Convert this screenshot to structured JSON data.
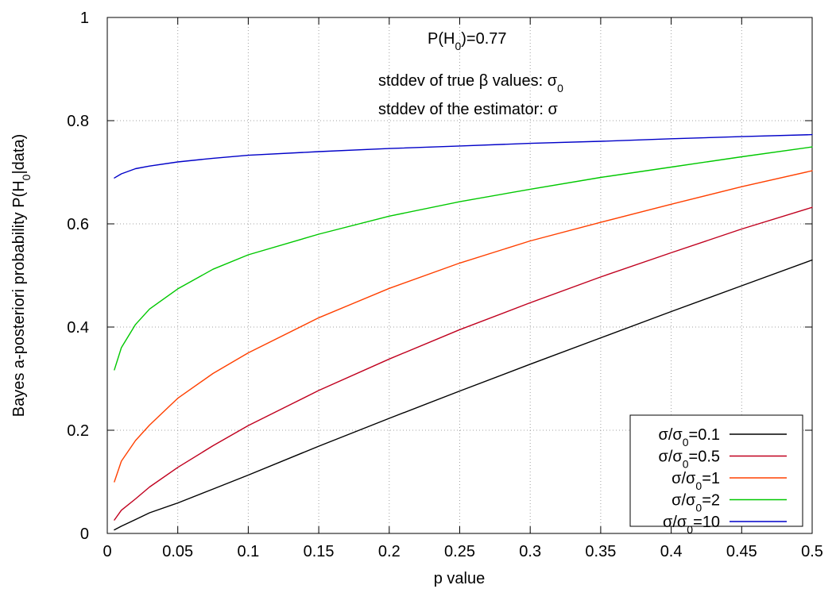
{
  "chart_data": {
    "type": "line",
    "title": "",
    "xlabel": "p value",
    "ylabel": "Bayes a-posteriori probability P(H",
    "ylabel_sub": "0",
    "ylabel_tail": "|data)",
    "xlim": [
      0,
      0.5
    ],
    "ylim": [
      0,
      1
    ],
    "xticks": [
      0,
      0.05,
      0.1,
      0.15,
      0.2,
      0.25,
      0.3,
      0.35,
      0.4,
      0.45,
      0.5
    ],
    "xtick_labels": [
      "0",
      "0.05",
      "0.1",
      "0.15",
      "0.2",
      "0.25",
      "0.3",
      "0.35",
      "0.4",
      "0.45",
      "0.5"
    ],
    "yticks": [
      0,
      0.2,
      0.4,
      0.6,
      0.8,
      1
    ],
    "ytick_labels": [
      "0",
      "0.2",
      "0.4",
      "0.6",
      "0.8",
      "1"
    ],
    "grid": true,
    "legend_position": "bottom-right",
    "annotations": {
      "prior_main": "P(H",
      "prior_sub": "0",
      "prior_tail": ")=0.77",
      "line1_main": "stddev of true β values: σ",
      "line1_sub": "0",
      "line2_main": "stddev of the estimator: σ"
    },
    "x": [
      0.005,
      0.01,
      0.02,
      0.03,
      0.05,
      0.075,
      0.1,
      0.15,
      0.2,
      0.25,
      0.3,
      0.35,
      0.4,
      0.45,
      0.5
    ],
    "series": [
      {
        "legend_main": "σ/σ",
        "legend_sub": "0",
        "legend_tail": "=0.1",
        "color": "#000000",
        "values": [
          0.007,
          0.014,
          0.027,
          0.04,
          0.059,
          0.086,
          0.113,
          0.169,
          0.223,
          0.276,
          0.328,
          0.379,
          0.43,
          0.48,
          0.53
        ]
      },
      {
        "legend_main": "σ/σ",
        "legend_sub": "0",
        "legend_tail": "=0.5",
        "color": "#c0001e",
        "values": [
          0.026,
          0.045,
          0.067,
          0.09,
          0.128,
          0.17,
          0.209,
          0.277,
          0.338,
          0.395,
          0.447,
          0.497,
          0.544,
          0.59,
          0.632
        ]
      },
      {
        "legend_main": "σ/σ",
        "legend_sub": "0",
        "legend_tail": "=1",
        "color": "#ff4000",
        "values": [
          0.1,
          0.14,
          0.18,
          0.21,
          0.262,
          0.31,
          0.35,
          0.418,
          0.475,
          0.524,
          0.567,
          0.603,
          0.638,
          0.672,
          0.703
        ]
      },
      {
        "legend_main": "σ/σ",
        "legend_sub": "0",
        "legend_tail": "=2",
        "color": "#00c800",
        "values": [
          0.317,
          0.36,
          0.405,
          0.435,
          0.474,
          0.512,
          0.54,
          0.58,
          0.615,
          0.643,
          0.667,
          0.69,
          0.71,
          0.73,
          0.749
        ]
      },
      {
        "legend_main": "σ/σ",
        "legend_sub": "0",
        "legend_tail": "=10",
        "color": "#0000c8",
        "values": [
          0.689,
          0.697,
          0.707,
          0.712,
          0.72,
          0.727,
          0.733,
          0.74,
          0.746,
          0.751,
          0.756,
          0.76,
          0.765,
          0.769,
          0.773
        ]
      }
    ]
  }
}
